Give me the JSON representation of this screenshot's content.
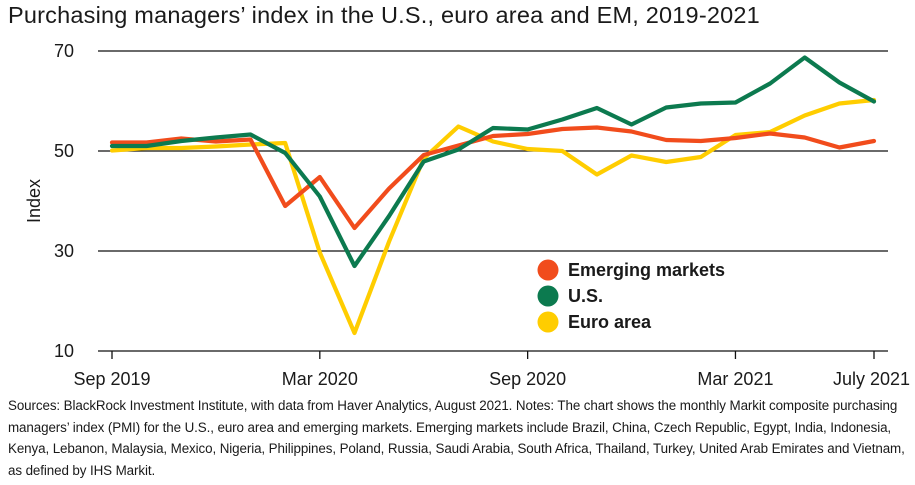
{
  "title": "Purchasing managers’ index in the U.S., euro area and EM, 2019-2021",
  "notes": "Sources: BlackRock Investment Institute, with data from Haver Analytics, August 2021. Notes: The chart shows the monthly Markit composite purchasing managers’ index (PMI) for the U.S., euro area and emerging markets. Emerging markets include Brazil, China, Czech Republic, Egypt, India, Indonesia, Kenya, Lebanon, Malaysia, Mexico, Nigeria, Philippines, Poland, Russia, Saudi Arabia, South Africa, Thailand, Turkey, United Arab Emirates and Vietnam, as defined by IHS Markit.",
  "chart_data": {
    "type": "line",
    "title": "Purchasing managers’ index in the U.S., euro area and EM, 2019-2021",
    "xlabel": "",
    "ylabel": "Index",
    "ylim": [
      10,
      70
    ],
    "yticks": [
      10,
      30,
      50,
      70
    ],
    "grid": true,
    "legend_position": "bottom-right",
    "x": [
      "2019-09",
      "2019-10",
      "2019-11",
      "2019-12",
      "2020-01",
      "2020-02",
      "2020-03",
      "2020-04",
      "2020-05",
      "2020-06",
      "2020-07",
      "2020-08",
      "2020-09",
      "2020-10",
      "2020-11",
      "2020-12",
      "2021-01",
      "2021-02",
      "2021-03",
      "2021-04",
      "2021-05",
      "2021-06",
      "2021-07"
    ],
    "xtick_labels": [
      {
        "label": "Sep 2019",
        "at": "2019-09"
      },
      {
        "label": "Mar 2020",
        "at": "2020-03"
      },
      {
        "label": "Sep 2020",
        "at": "2020-09"
      },
      {
        "label": "Mar 2021",
        "at": "2021-03"
      },
      {
        "label": "July 2021",
        "at": "2021-07"
      }
    ],
    "series": [
      {
        "name": "Emerging markets",
        "color": "#F14C1C",
        "values": [
          51.7,
          51.7,
          52.5,
          51.9,
          52.3,
          39.0,
          44.8,
          34.6,
          42.5,
          49.2,
          51.1,
          53.0,
          53.4,
          54.4,
          54.7,
          53.9,
          52.2,
          52.0,
          52.6,
          53.5,
          52.7,
          50.7,
          52.0
        ]
      },
      {
        "name": "U.S.",
        "color": "#0C7A4F",
        "values": [
          51.0,
          51.0,
          52.0,
          52.7,
          53.3,
          49.6,
          40.9,
          27.0,
          37.0,
          47.9,
          50.3,
          54.6,
          54.3,
          56.3,
          58.6,
          55.3,
          58.7,
          59.5,
          59.7,
          63.5,
          68.7,
          63.7,
          59.9
        ]
      },
      {
        "name": "Euro area",
        "color": "#FFCD00",
        "values": [
          50.1,
          50.6,
          50.6,
          50.9,
          51.3,
          51.6,
          29.7,
          13.6,
          31.9,
          48.5,
          54.9,
          51.9,
          50.4,
          50.0,
          45.3,
          49.1,
          47.8,
          48.8,
          53.2,
          53.8,
          57.1,
          59.5,
          60.2
        ]
      }
    ]
  }
}
